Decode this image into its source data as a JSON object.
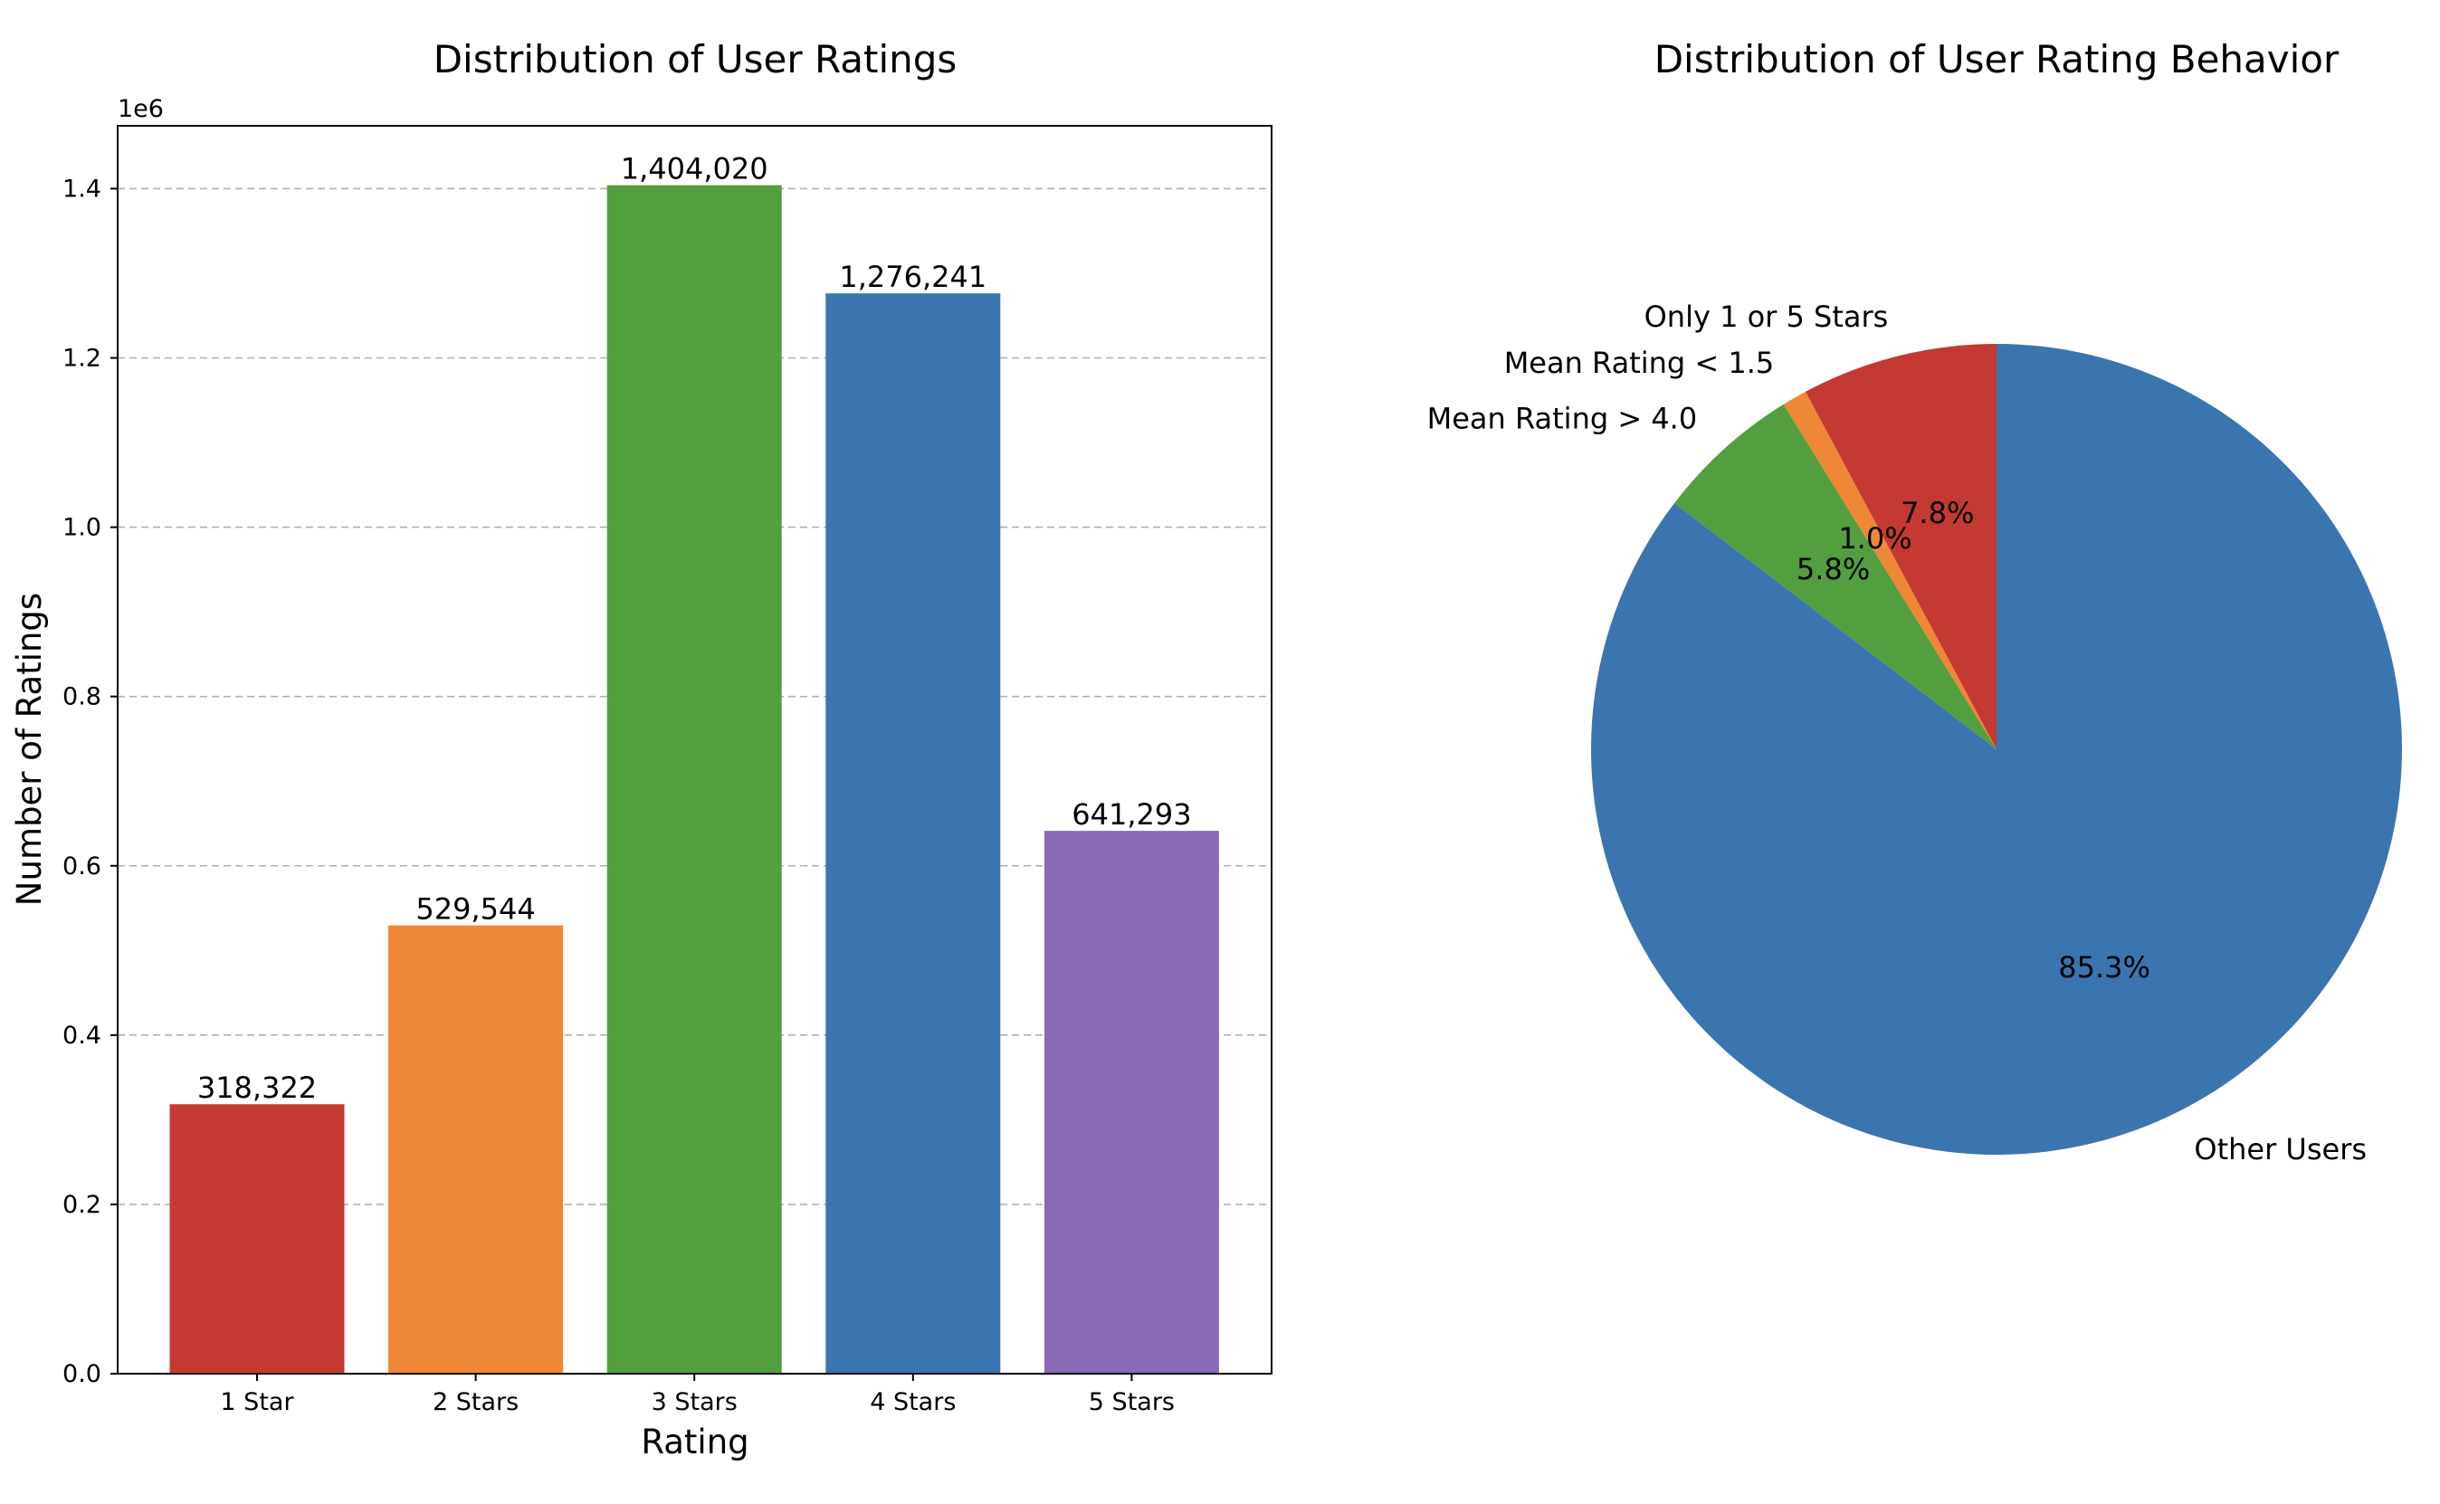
{
  "chart_data": [
    {
      "type": "bar",
      "title": "Distribution of User Ratings",
      "xlabel": "Rating",
      "ylabel": "Number of Ratings",
      "offset_label": "1e6",
      "categories": [
        "1 Star",
        "2 Stars",
        "3 Stars",
        "4 Stars",
        "5 Stars"
      ],
      "values": [
        318322,
        529544,
        1404020,
        1276241,
        641293
      ],
      "value_labels": [
        "318,322",
        "529,544",
        "1,404,020",
        "1,276,241",
        "641,293"
      ],
      "colors": [
        "#c43932",
        "#ee8736",
        "#539e3e",
        "#3b75af",
        "#8b6ab5"
      ],
      "ylim": [
        0,
        1474221
      ],
      "yticks": [
        0,
        200000,
        400000,
        600000,
        800000,
        1000000,
        1200000,
        1400000
      ],
      "ytick_labels": [
        "0.0",
        "0.2",
        "0.4",
        "0.6",
        "0.8",
        "1.0",
        "1.2",
        "1.4"
      ],
      "grid": "y, dashed",
      "legend": "none"
    },
    {
      "type": "pie",
      "title": "Distribution of User Rating Behavior",
      "labels": [
        "Only 1 or 5 Stars",
        "Mean Rating < 1.5",
        "Mean Rating > 4.0",
        "Other Users"
      ],
      "values": [
        7.8,
        1.0,
        5.8,
        85.3
      ],
      "pct_labels": [
        "7.8%",
        "1.0%",
        "5.8%",
        "85.3%"
      ],
      "colors": [
        "#c43932",
        "#ee8736",
        "#539e3e",
        "#3b75af"
      ],
      "start_angle": "top, counter-clockwise"
    }
  ]
}
